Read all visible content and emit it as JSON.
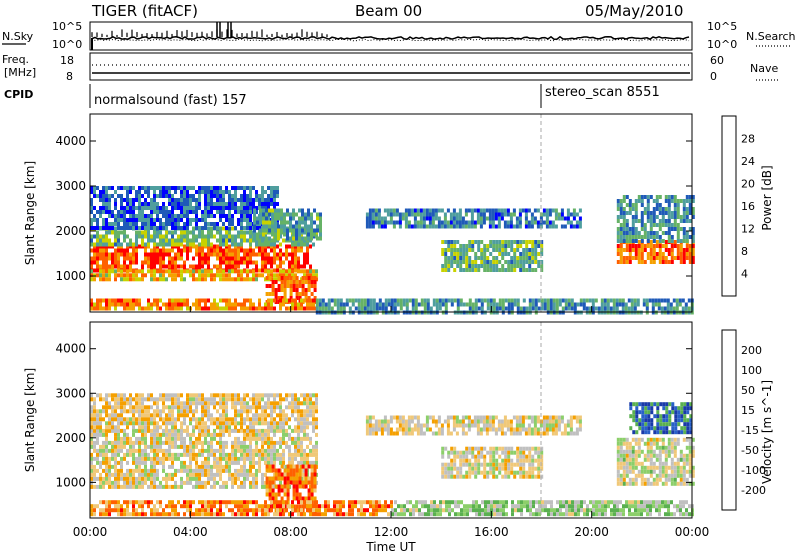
{
  "header": {
    "radar": "TIGER (fitACF)",
    "beam": "Beam 00",
    "date": "05/May/2010"
  },
  "noise_panel": {
    "left_label": "N.Sky",
    "left_tick_top": "10^5",
    "left_tick_bottom": "10^0",
    "right_label": "N.Search",
    "right_tick_top": "10^5",
    "right_tick_bottom": "10^0"
  },
  "freq_panel": {
    "left_label_1": "Freq.",
    "left_label_2": "[MHz]",
    "left_tick_top": "18",
    "left_tick_bottom": "8",
    "right_label": "Nave",
    "right_tick_top": "60",
    "right_tick_bottom": "0"
  },
  "cpid_panel": {
    "label": "CPID",
    "mode_1": "normalsound (fast) 157",
    "mode_2": "stereo_scan 8551"
  },
  "chart_data": [
    {
      "type": "heatmap",
      "name": "power",
      "ylabel": "Slant Range [km]",
      "ylim": [
        200,
        4600
      ],
      "yticks": [
        "1000",
        "2000",
        "3000",
        "4000"
      ],
      "xlim": [
        0,
        24
      ],
      "colorbar_label": "Power [dB]",
      "colorbar_ticks": [
        "4",
        "8",
        "12",
        "16",
        "20",
        "24",
        "28"
      ],
      "colorbar_colors": [
        "#0000ff",
        "#1f5ab8",
        "#4f9e9e",
        "#66b266",
        "#c8d200",
        "#f5a000",
        "#ff6000",
        "#ff0000"
      ],
      "regions": [
        {
          "x": [
            0.0,
            8.8
          ],
          "y": [
            1150,
            1700
          ],
          "level": 0.85
        },
        {
          "x": [
            0.0,
            9.0
          ],
          "y": [
            900,
            1150
          ],
          "level": 0.65
        },
        {
          "x": [
            0.0,
            9.0
          ],
          "y": [
            1700,
            2100
          ],
          "level": 0.4
        },
        {
          "x": [
            0.0,
            7.5
          ],
          "y": [
            2100,
            3000
          ],
          "level": 0.2
        },
        {
          "x": [
            7.0,
            9.0
          ],
          "y": [
            400,
            1000
          ],
          "level": 0.8
        },
        {
          "x": [
            0.0,
            9.0
          ],
          "y": [
            250,
            500
          ],
          "level": 0.75
        },
        {
          "x": [
            6.5,
            9.2
          ],
          "y": [
            1800,
            2500
          ],
          "level": 0.35
        },
        {
          "x": [
            9.0,
            24.0
          ],
          "y": [
            200,
            500
          ],
          "level": 0.3
        },
        {
          "x": [
            11.0,
            19.5
          ],
          "y": [
            2100,
            2500
          ],
          "level": 0.25
        },
        {
          "x": [
            14.0,
            18.0
          ],
          "y": [
            1100,
            1800
          ],
          "level": 0.4
        },
        {
          "x": [
            21.0,
            24.0
          ],
          "y": [
            1300,
            1800
          ],
          "level": 0.8
        },
        {
          "x": [
            21.0,
            24.0
          ],
          "y": [
            1800,
            2800
          ],
          "level": 0.3
        }
      ]
    },
    {
      "type": "heatmap",
      "name": "velocity",
      "ylabel": "Slant Range [km]",
      "ylim": [
        200,
        4600
      ],
      "yticks": [
        "1000",
        "2000",
        "3000",
        "4000"
      ],
      "xlim": [
        0,
        24
      ],
      "xticks": [
        "00:00",
        "04:00",
        "08:00",
        "12:00",
        "16:00",
        "20:00",
        "00:00"
      ],
      "xlabel": "Time UT",
      "colorbar_label": "Velocity [m s^-1]",
      "colorbar_ticks": [
        "-200",
        "-100",
        "-50",
        "-15",
        "15",
        "50",
        "100",
        "200"
      ],
      "colorbar_colors": [
        "#ff0000",
        "#ff6000",
        "#f5a000",
        "#f0c878",
        "#c0c0c0",
        "#8ccf6a",
        "#5ab050",
        "#2860c8",
        "#1a3aa8"
      ],
      "regions": [
        {
          "x": [
            0.0,
            9.0
          ],
          "y": [
            900,
            2200
          ],
          "level": 0.45
        },
        {
          "x": [
            0.0,
            9.0
          ],
          "y": [
            2200,
            3000
          ],
          "level": 0.4
        },
        {
          "x": [
            7.0,
            9.0
          ],
          "y": [
            400,
            1400
          ],
          "level": 0.2
        },
        {
          "x": [
            0.0,
            12.0
          ],
          "y": [
            250,
            600
          ],
          "level": 0.25
        },
        {
          "x": [
            12.0,
            24.0
          ],
          "y": [
            250,
            600
          ],
          "level": 0.6
        },
        {
          "x": [
            11.0,
            19.5
          ],
          "y": [
            2100,
            2500
          ],
          "level": 0.45
        },
        {
          "x": [
            14.0,
            18.0
          ],
          "y": [
            1100,
            1800
          ],
          "level": 0.45
        },
        {
          "x": [
            21.0,
            24.0
          ],
          "y": [
            1000,
            2000
          ],
          "level": 0.5
        },
        {
          "x": [
            21.5,
            24.0
          ],
          "y": [
            2100,
            2800
          ],
          "level": 0.85
        }
      ]
    }
  ]
}
